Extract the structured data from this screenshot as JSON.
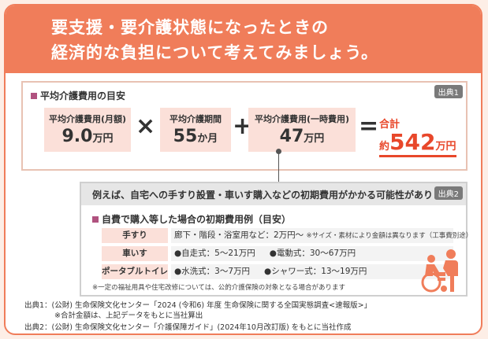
{
  "header": {
    "line1": "要支援・要介護状態になったときの",
    "line2": "経済的な負担について考えてみましょう。"
  },
  "average": {
    "title": "平均介護費用の目安",
    "source_tag": "出典1",
    "monthly": {
      "label": "平均介護費用(月額)",
      "value": "9.0",
      "unit": "万円"
    },
    "times": "×",
    "period": {
      "label": "平均介護期間",
      "value": "55",
      "unit": "か月"
    },
    "plus": "+",
    "one_time": {
      "label": "平均介護費用(一時費用)",
      "value": "47",
      "unit": "万円"
    },
    "equals": "=",
    "total": {
      "label": "合計",
      "prefix": "約",
      "value": "542",
      "unit": "万円"
    }
  },
  "initial": {
    "banner": "例えば、自宅への手すり設置・車いす購入などの初期費用がかかる可能性があります",
    "source_tag": "出典2",
    "title": "自費で購入等した場合の初期費用例（目安）",
    "rows": [
      {
        "label": "手すり",
        "text": "廊下・階段・浴室用など：2万円～",
        "note": "※サイズ・素材により金額は異なります（工事費別途）"
      },
      {
        "label": "車いす",
        "items": [
          "●自走式：5～21万円",
          "●電動式：30～67万円"
        ]
      },
      {
        "label": "ポータブルトイレ",
        "items": [
          "●水洗式：3～7万円",
          "●シャワー式：13～19万円"
        ]
      }
    ],
    "footnote": "※一定の福祉用具や住宅改修については、公的介護保険の対象となる場合があります",
    "figure_icon": "caregiver-wheelchair-icon"
  },
  "sources": {
    "s1": "出典1：(公財) 生命保険文化センター「2024 (令和6) 年度 生命保険に関する全国実態調査<速報版>」",
    "s1_note": "※合計金額は、上記データをもとに当社算出",
    "s2": "出典2：(公財) 生命保険文化センター「介護保障ガイド」(2024年10月改訂版) をもとに当社作成"
  },
  "colors": {
    "accent": "#f07d5a",
    "pink_box": "#fbe0d9",
    "total_red": "#e8472a",
    "bullet": "#b0527f"
  }
}
